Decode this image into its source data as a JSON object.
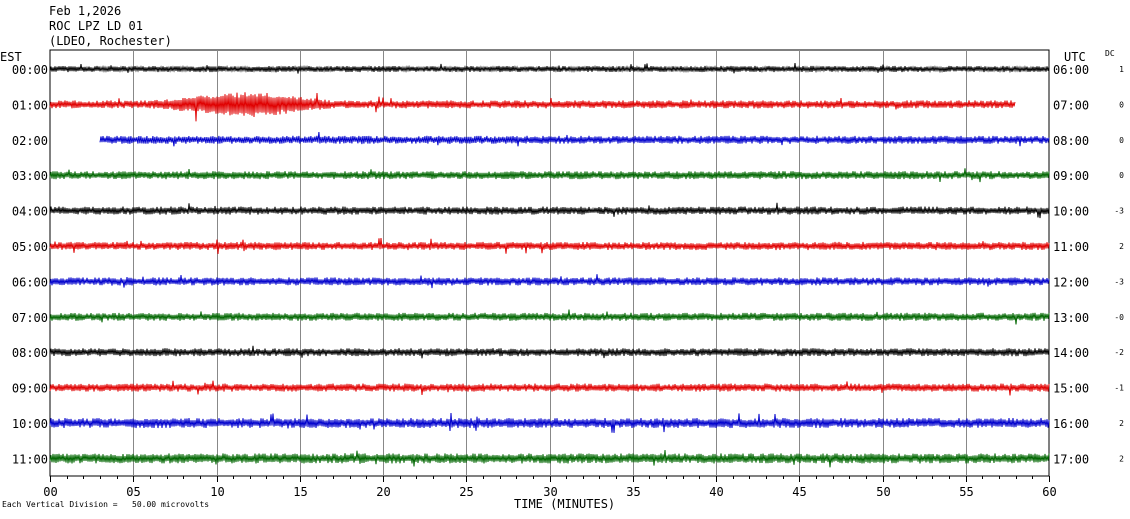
{
  "header": {
    "date": "Feb 1,2026",
    "station": "ROC LPZ LD 01",
    "network": "(LDEO, Rochester)"
  },
  "timezones": {
    "left": "EST",
    "right": "UTC"
  },
  "dc_header": "DC",
  "footnote": "Each Vertical Division =   50.00 microvolts",
  "colors": [
    "#000000",
    "#e00000",
    "#0000cc",
    "#006600"
  ],
  "chart_data": {
    "type": "line",
    "title": "",
    "xlabel": "TIME (MINUTES)",
    "ylabel": "",
    "xlim": [
      0,
      60
    ],
    "x_ticks": [
      "00",
      "05",
      "10",
      "15",
      "20",
      "25",
      "30",
      "35",
      "40",
      "45",
      "50",
      "55",
      "60"
    ],
    "grid": true,
    "series": [
      {
        "est": "00:00",
        "utc": "06:00",
        "dc": "1",
        "color": "#000000",
        "start_min": 0,
        "end_min": 60,
        "amplitude": 3
      },
      {
        "est": "01:00",
        "utc": "07:00",
        "dc": "0",
        "color": "#e00000",
        "start_min": 0,
        "end_min": 58,
        "amplitude": 4,
        "event": {
          "start_min": 6,
          "peak_min": 12,
          "end_min": 17,
          "amplitude": 10
        }
      },
      {
        "est": "02:00",
        "utc": "08:00",
        "dc": "0",
        "color": "#0000cc",
        "start_min": 3,
        "end_min": 60,
        "amplitude": 4
      },
      {
        "est": "03:00",
        "utc": "09:00",
        "dc": "0",
        "color": "#006600",
        "start_min": 0,
        "end_min": 60,
        "amplitude": 4
      },
      {
        "est": "04:00",
        "utc": "10:00",
        "dc": "-3",
        "color": "#000000",
        "start_min": 0,
        "end_min": 60,
        "amplitude": 4
      },
      {
        "est": "05:00",
        "utc": "11:00",
        "dc": "2",
        "color": "#e00000",
        "start_min": 0,
        "end_min": 60,
        "amplitude": 4
      },
      {
        "est": "06:00",
        "utc": "12:00",
        "dc": "-3",
        "color": "#0000cc",
        "start_min": 0,
        "end_min": 60,
        "amplitude": 4
      },
      {
        "est": "07:00",
        "utc": "13:00",
        "dc": "-0",
        "color": "#006600",
        "start_min": 0,
        "end_min": 60,
        "amplitude": 4
      },
      {
        "est": "08:00",
        "utc": "14:00",
        "dc": "-2",
        "color": "#000000",
        "start_min": 0,
        "end_min": 60,
        "amplitude": 4
      },
      {
        "est": "09:00",
        "utc": "15:00",
        "dc": "-1",
        "color": "#e00000",
        "start_min": 0,
        "end_min": 60,
        "amplitude": 4
      },
      {
        "est": "10:00",
        "utc": "16:00",
        "dc": "2",
        "color": "#0000cc",
        "start_min": 0,
        "end_min": 60,
        "amplitude": 5
      },
      {
        "est": "11:00",
        "utc": "17:00",
        "dc": "2",
        "color": "#006600",
        "start_min": 0,
        "end_min": 60,
        "amplitude": 5
      }
    ]
  }
}
